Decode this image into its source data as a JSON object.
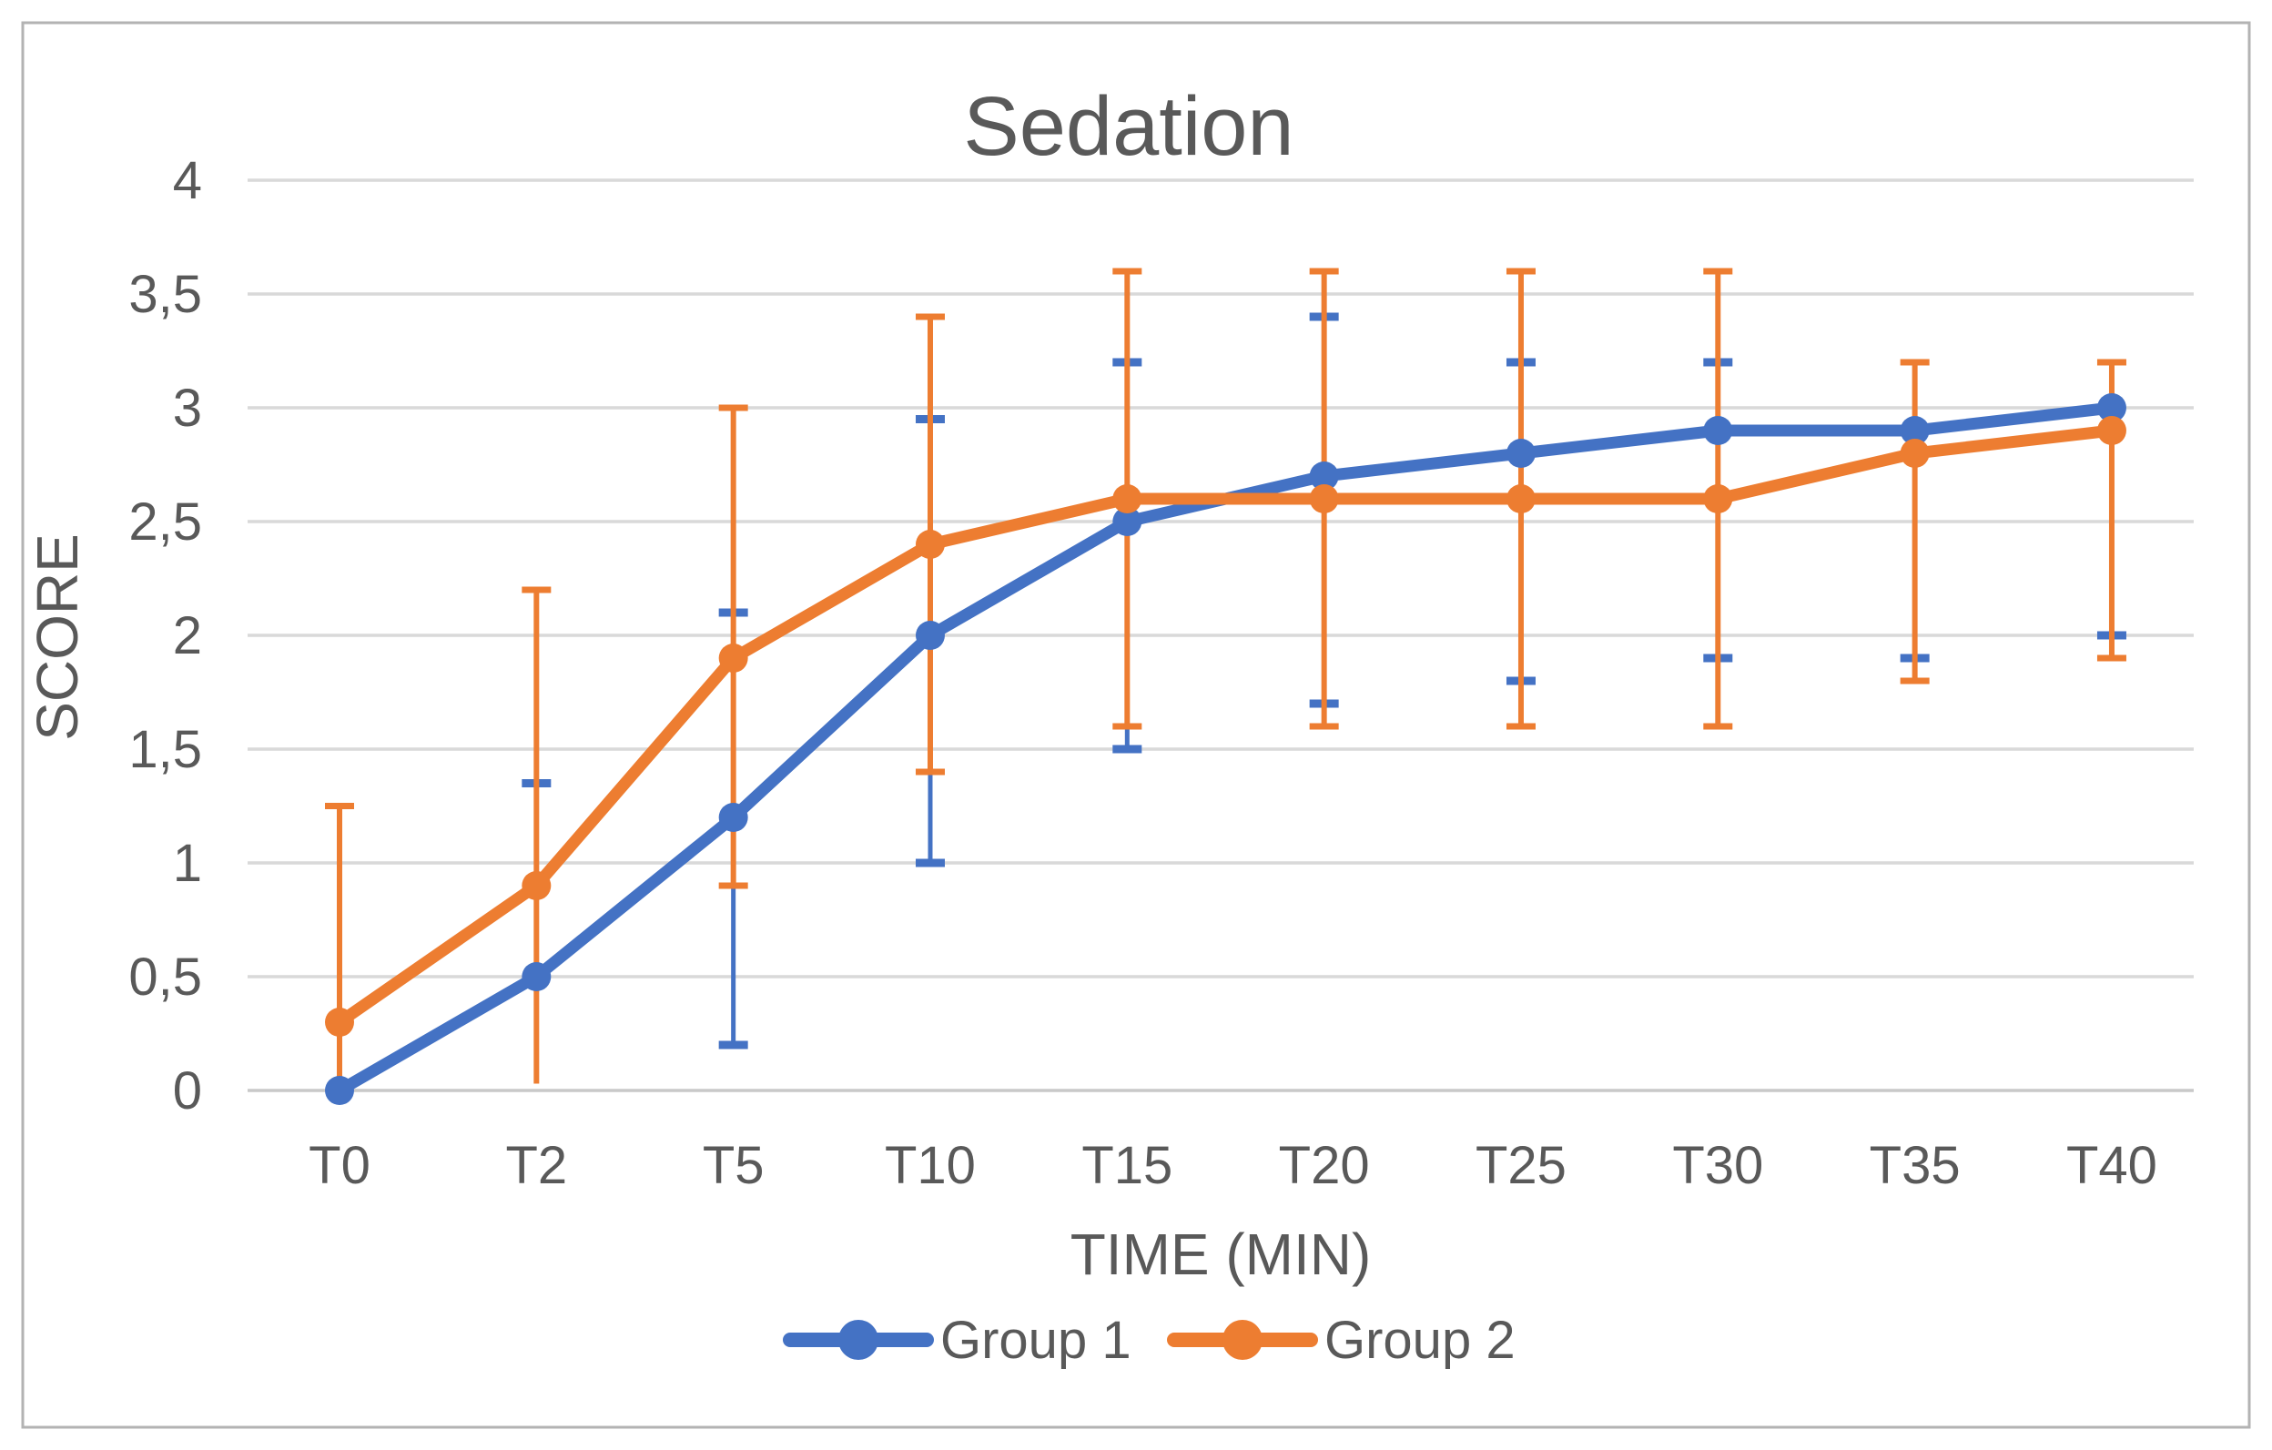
{
  "figure": {
    "background": "#ffffff",
    "border_color": "#b3b3b3",
    "gridline_color": "#d9d9d9",
    "axis_line_color": "#c9c9c9",
    "text_color": "#595959"
  },
  "chart_data": {
    "type": "line",
    "title": "Sedation",
    "xlabel": "TIME (MIN)",
    "ylabel": "SCORE",
    "categories": [
      "T0",
      "T2",
      "T5",
      "T10",
      "T15",
      "T20",
      "T25",
      "T30",
      "T35",
      "T40"
    ],
    "y_tick_labels": [
      "0",
      "0,5",
      "1",
      "1,5",
      "2",
      "2,5",
      "3",
      "3,5",
      "4"
    ],
    "y_tick_values": [
      0,
      0.5,
      1,
      1.5,
      2,
      2.5,
      3,
      3.5,
      4
    ],
    "ylim": [
      0,
      4
    ],
    "grid": true,
    "legend_position": "bottom",
    "series": [
      {
        "name": "Group 1",
        "color": "#4472C4",
        "marker": "circle",
        "values": [
          0,
          0.5,
          1.2,
          2.0,
          2.5,
          2.7,
          2.8,
          2.9,
          2.9,
          3.0
        ],
        "error_low": [
          null,
          null,
          0.2,
          1.0,
          1.5,
          1.7,
          1.8,
          1.9,
          1.9,
          2.0
        ],
        "error_low_cap": [
          false,
          false,
          true,
          true,
          true,
          true,
          true,
          true,
          true,
          true
        ],
        "error_high": [
          null,
          1.35,
          2.1,
          2.95,
          3.2,
          3.4,
          3.2,
          3.2,
          null,
          null
        ],
        "error_high_cap": [
          false,
          true,
          true,
          true,
          true,
          true,
          true,
          true,
          false,
          false
        ]
      },
      {
        "name": "Group 2",
        "color": "#ED7D31",
        "marker": "circle",
        "values": [
          0.3,
          0.9,
          1.9,
          2.4,
          2.6,
          2.6,
          2.6,
          2.6,
          2.8,
          2.9
        ],
        "error_low": [
          0.02,
          0.03,
          0.9,
          1.4,
          1.6,
          1.6,
          1.6,
          1.6,
          1.8,
          1.9
        ],
        "error_low_cap": [
          false,
          false,
          true,
          true,
          true,
          true,
          true,
          true,
          true,
          true
        ],
        "error_high": [
          1.25,
          2.2,
          3.0,
          3.4,
          3.6,
          3.6,
          3.6,
          3.6,
          3.2,
          3.2
        ],
        "error_high_cap": [
          true,
          true,
          true,
          true,
          true,
          true,
          true,
          true,
          true,
          true
        ]
      }
    ]
  }
}
